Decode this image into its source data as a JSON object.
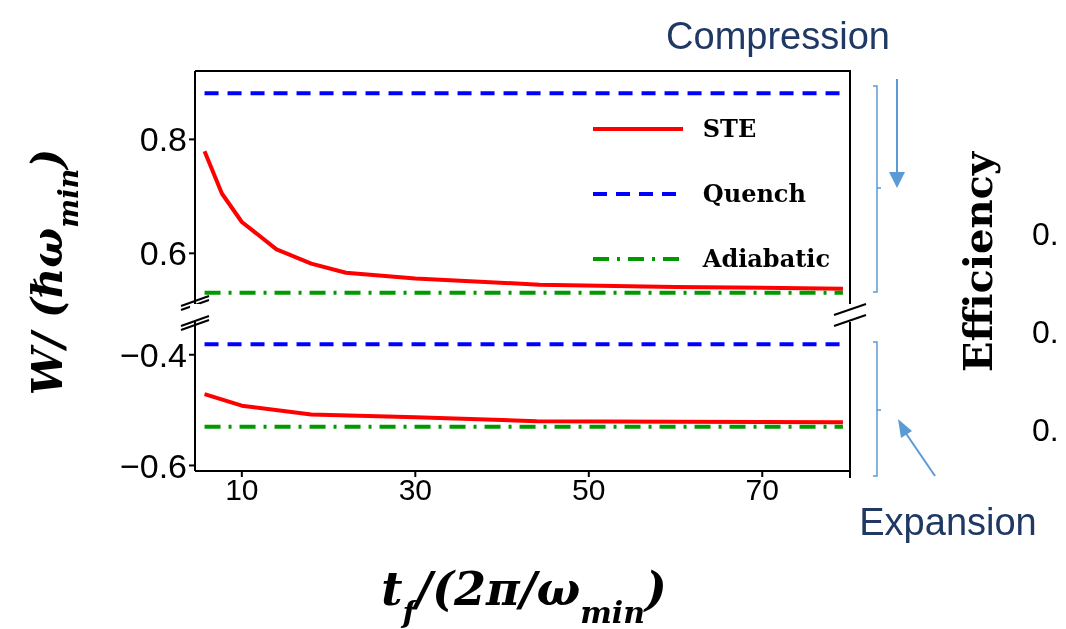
{
  "chart_data": [
    {
      "type": "line",
      "ylabel": "W/ (ℏω$_{min}$)",
      "xlim": [
        4.6,
        80
      ],
      "ylim": [
        0.49,
        0.92
      ],
      "yticks": [
        0.6,
        0.8
      ],
      "tick_labels": "y",
      "legend": "top right",
      "annotations": [
        "Compression",
        "Efficiency",
        "0.",
        "0.",
        "0."
      ],
      "series": [
        {
          "name": "STE",
          "color": "#ff0000",
          "line_style": "solid",
          "x": [
            5.7,
            7.7,
            10,
            14,
            18,
            22,
            30,
            44.3,
            60,
            79.3
          ],
          "values": [
            0.779,
            0.705,
            0.655,
            0.607,
            0.582,
            0.566,
            0.556,
            0.545,
            0.541,
            0.538
          ]
        },
        {
          "name": "Quench",
          "color": "#0000ff",
          "line_style": "dashed",
          "x": [
            5.7,
            79.3
          ],
          "values": [
            0.881,
            0.881
          ]
        },
        {
          "name": "Adiabatic",
          "color": "#009900",
          "line_style": "dashdot",
          "x": [
            5.7,
            79.3
          ],
          "values": [
            0.531,
            0.531
          ]
        }
      ]
    },
    {
      "type": "line",
      "xlabel": "t$_{f}$/(2π/ω$_{min}$)",
      "xlim": [
        4.6,
        80
      ],
      "xticks": [
        10,
        30,
        50,
        70
      ],
      "ylim": [
        -0.61,
        -0.33
      ],
      "yticks": [
        -0.6,
        -0.4
      ],
      "legend": false,
      "annotations": [
        "Expansion"
      ],
      "series": [
        {
          "color": "#ff0000",
          "line_style": "solid",
          "x": [
            5.7,
            10,
            18,
            30,
            44,
            60,
            79.3
          ],
          "values": [
            -0.471,
            -0.492,
            -0.508,
            -0.513,
            -0.52,
            -0.521,
            -0.522
          ]
        },
        {
          "color": "#0000ff",
          "line_style": "dashed",
          "x": [
            5.7,
            79.3
          ],
          "values": [
            -0.381,
            -0.381
          ]
        },
        {
          "color": "#009900",
          "line_style": "dashdot",
          "x": [
            5.7,
            79.3
          ],
          "values": [
            -0.53,
            -0.53
          ]
        }
      ]
    }
  ]
}
